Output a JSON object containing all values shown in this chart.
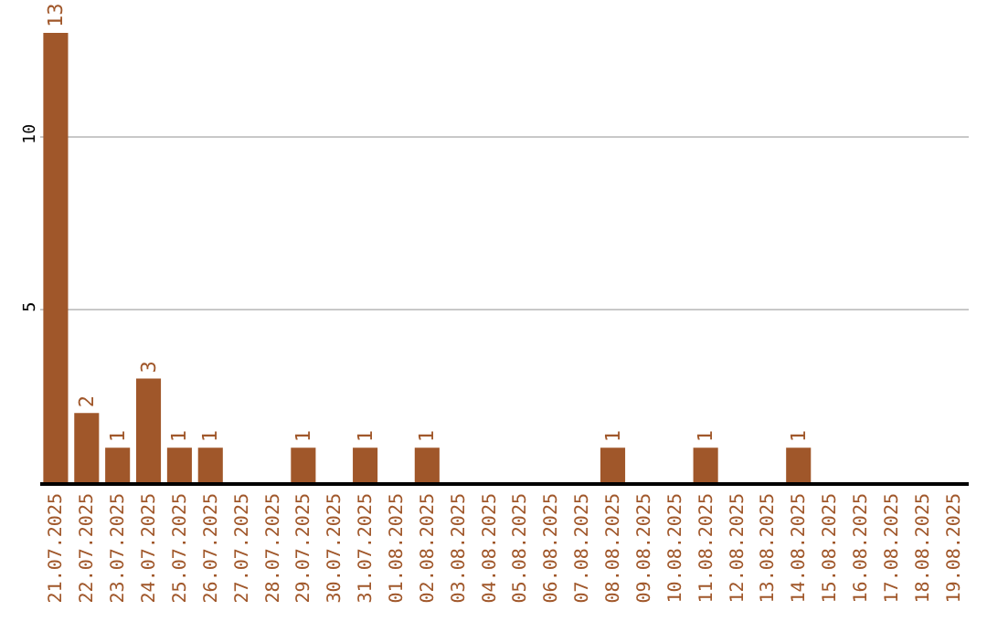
{
  "chart_data": {
    "type": "bar",
    "categories": [
      "21.07.2025",
      "22.07.2025",
      "23.07.2025",
      "24.07.2025",
      "25.07.2025",
      "26.07.2025",
      "27.07.2025",
      "28.07.2025",
      "29.07.2025",
      "30.07.2025",
      "31.07.2025",
      "01.08.2025",
      "02.08.2025",
      "03.08.2025",
      "04.08.2025",
      "05.08.2025",
      "06.08.2025",
      "07.08.2025",
      "08.08.2025",
      "09.08.2025",
      "10.08.2025",
      "11.08.2025",
      "12.08.2025",
      "13.08.2025",
      "14.08.2025",
      "15.08.2025",
      "16.08.2025",
      "17.08.2025",
      "18.08.2025",
      "19.08.2025"
    ],
    "values": [
      13,
      2,
      1,
      3,
      1,
      1,
      0,
      0,
      1,
      0,
      1,
      0,
      1,
      0,
      0,
      0,
      0,
      0,
      1,
      0,
      0,
      1,
      0,
      0,
      1,
      0,
      0,
      0,
      0,
      0
    ],
    "value_labels": [
      "13",
      "2",
      "1",
      "3",
      "1",
      "1",
      null,
      null,
      "1",
      null,
      "1",
      null,
      "1",
      null,
      null,
      null,
      null,
      null,
      "1",
      null,
      null,
      "1",
      null,
      null,
      "1",
      null,
      null,
      null,
      null,
      null
    ],
    "color": "#a0572a",
    "ylim": [
      0,
      13
    ],
    "yticks": [
      5,
      10
    ],
    "grid": "y"
  }
}
